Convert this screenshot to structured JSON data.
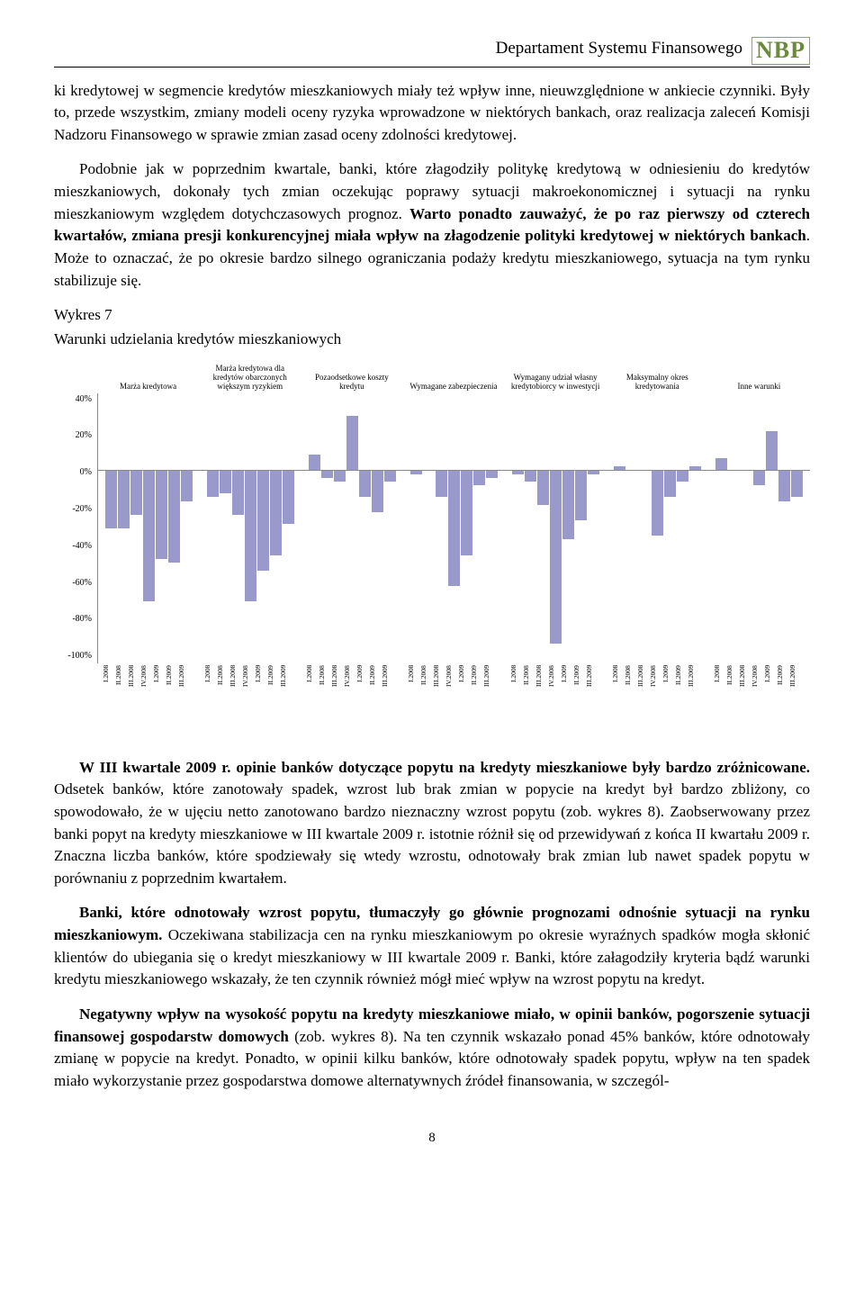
{
  "header": {
    "department": "Departament Systemu Finansowego",
    "logo": "NBP"
  },
  "paragraphs": {
    "p1": "ki kredytowej w segmencie kredytów mieszkaniowych miały też wpływ inne, nieuwzględnione w ankiecie czynniki. Były to, przede wszystkim, zmiany modeli oceny ryzyka wprowadzone w niektórych bankach, oraz realizacja zaleceń Komisji Nadzoru Finansowego w sprawie zmian zasad oceny zdolności kredytowej.",
    "p2a": "Podobnie jak w poprzednim kwartale, banki, które złagodziły politykę kredytową w odniesieniu do kredytów mieszkaniowych, dokonały tych zmian oczekując poprawy sytuacji makroekonomicznej i sytuacji na rynku mieszkaniowym względem dotychczasowych prognoz. ",
    "p2b": "Warto ponadto zauważyć, że po raz pierwszy od czterech kwartałów, zmiana presji konkurencyjnej miała wpływ na złagodzenie polityki kredytowej w niektórych bankach",
    "p2c": ". Może to oznaczać, że po okresie bardzo silnego ograniczania podaży kredytu mieszkaniowego, sytuacja na tym rynku stabilizuje się.",
    "fig_title": "Wykres 7",
    "fig_sub": "Warunki udzielania kredytów mieszkaniowych",
    "p3a": "W III kwartale 2009 r. opinie banków dotyczące popytu na kredyty mieszkaniowe były bardzo zróżnicowane.",
    "p3b": " Odsetek banków, które zanotowały spadek, wzrost lub brak zmian w popycie na kredyt był bardzo zbliżony, co spowodowało, że w ujęciu netto zanotowano bardzo nieznaczny wzrost popytu (zob. wykres 8). Zaobserwowany przez banki popyt na kredyty mieszkaniowe w III kwartale 2009 r. istotnie różnił się od przewidywań z końca II kwartału 2009 r. Znaczna liczba banków, które spodziewały się wtedy wzrostu, odnotowały brak zmian lub nawet spadek popytu w porównaniu z poprzednim kwartałem.",
    "p4a": "Banki, które odnotowały wzrost popytu, tłumaczyły go głównie prognozami odnośnie sytuacji na rynku mieszkaniowym.",
    "p4b": " Oczekiwana stabilizacja cen na rynku mieszkaniowym po okresie wyraźnych spadków mogła skłonić klientów do ubiegania się o kredyt mieszkaniowy w III kwartale 2009 r. Banki, które załagodziły kryteria bądź warunki kredytu mieszkaniowego wskazały, że ten czynnik również mógł mieć wpływ na wzrost popytu na kredyt.",
    "p5a": "Negatywny wpływ na wysokość popytu na kredyty mieszkaniowe miało, w opinii banków, pogorszenie sytuacji finansowej gospodarstw domowych",
    "p5b": " (zob. wykres 8). Na ten czynnik wskazało ponad 45% banków, które odnotowały zmianę w popycie na kredyt. Ponadto, w opinii kilku banków, które odnotowały spadek popytu, wpływ na ten spadek miało wykorzystanie przez gospodarstwa domowe alternatywnych źródeł finansowania, w szczegól-"
  },
  "page_number": "8",
  "chart": {
    "type": "bar",
    "bar_color": "#9999cc",
    "axis_color": "#888888",
    "background": "#ffffff",
    "ylim": [
      -100,
      40
    ],
    "ytick_step": 20,
    "yticks": [
      "40%",
      "20%",
      "0%",
      "-20%",
      "-40%",
      "-60%",
      "-80%",
      "-100%"
    ],
    "periods": [
      "I.2008",
      "II.2008",
      "III.2008",
      "IV.2008",
      "I.2009",
      "II.2009",
      "III.2009"
    ],
    "groups": [
      {
        "label": "Marża kredytowa",
        "values": [
          -30,
          -30,
          -23,
          -68,
          -46,
          -48,
          -16
        ]
      },
      {
        "label": "Marża kredytowa dla kredytów obarczonych większym ryzykiem",
        "values": [
          -14,
          -12,
          -23,
          -68,
          -52,
          -44,
          -28
        ]
      },
      {
        "label": "Pozaodsetkowe koszty kredytu",
        "values": [
          8,
          -4,
          -6,
          28,
          -14,
          -22,
          -6
        ]
      },
      {
        "label": "Wymagane zabezpieczenia",
        "values": [
          -2,
          0,
          -14,
          -60,
          -44,
          -8,
          -4
        ]
      },
      {
        "label": "Wymagany udział własny kredytobiorcy w inwestycji",
        "values": [
          -2,
          -6,
          -18,
          -90,
          -36,
          -26,
          -2
        ]
      },
      {
        "label": "Maksymalny okres kredytowania",
        "values": [
          2,
          0,
          0,
          -34,
          -14,
          -6,
          2
        ]
      },
      {
        "label": "Inne warunki",
        "values": [
          6,
          0,
          0,
          -8,
          20,
          -16,
          -14
        ]
      }
    ]
  }
}
